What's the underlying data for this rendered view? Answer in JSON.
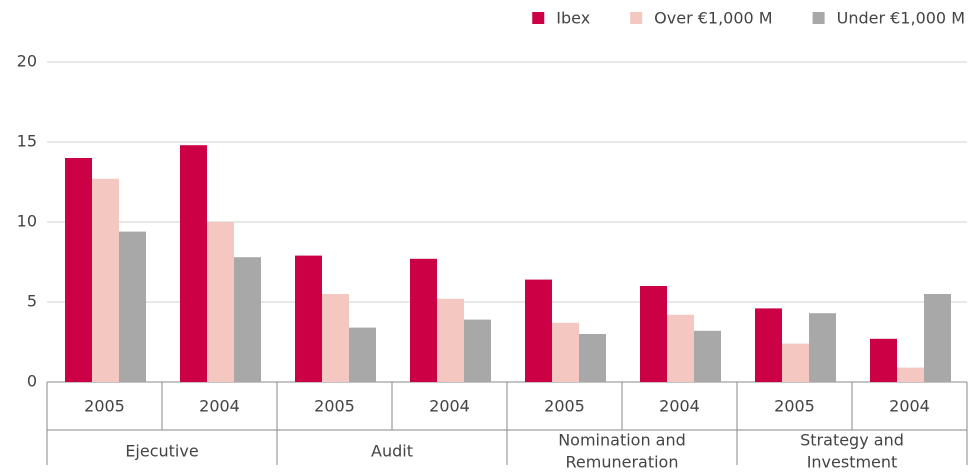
{
  "chart_data": {
    "type": "bar",
    "categories": [
      "2005",
      "2004",
      "2005",
      "2004",
      "2005",
      "2004",
      "2005",
      "2004"
    ],
    "groups": [
      [
        "Ejecutive"
      ],
      [
        "Audit"
      ],
      [
        "Nomination and",
        "Remuneration"
      ],
      [
        "Strategy and",
        "Investment"
      ]
    ],
    "series": [
      {
        "name": "Ibex",
        "color": "#cc0044",
        "values": [
          14.0,
          14.8,
          7.9,
          7.7,
          6.4,
          6.0,
          4.6,
          2.7
        ]
      },
      {
        "name": "Over €1,000 M",
        "color": "#f4c8c0",
        "values": [
          12.7,
          10.0,
          5.5,
          5.2,
          3.7,
          4.2,
          2.4,
          0.9
        ]
      },
      {
        "name": "Under €1,000 M",
        "color": "#a8a8a8",
        "values": [
          9.4,
          7.8,
          3.4,
          3.9,
          3.0,
          3.2,
          4.3,
          5.5
        ]
      }
    ],
    "ylim": [
      0,
      20
    ],
    "yticks": [
      0,
      5,
      10,
      15,
      20
    ],
    "grid": true,
    "legend": "top-right"
  }
}
